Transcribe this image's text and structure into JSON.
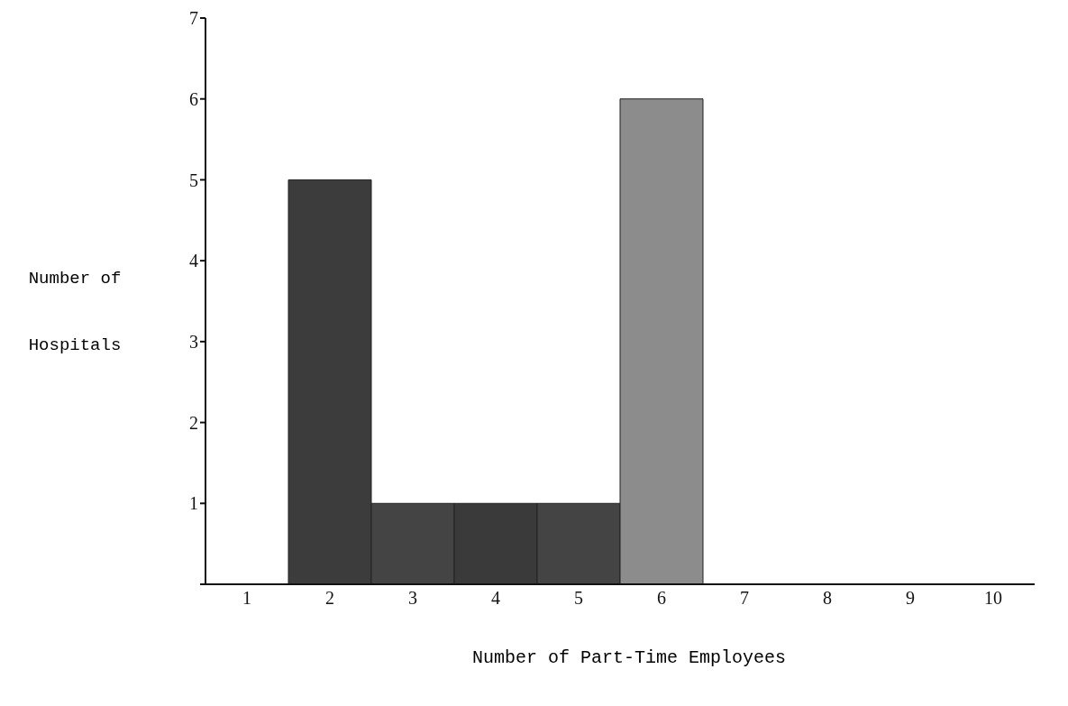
{
  "chart_data": {
    "type": "bar",
    "xlabel": "Number of Part-Time Employees",
    "ylabel": "Number of Hospitals",
    "categories": [
      "1",
      "2",
      "3",
      "4",
      "5",
      "6",
      "7",
      "8",
      "9",
      "10"
    ],
    "values": [
      0,
      5,
      1,
      1,
      1,
      6,
      0,
      0,
      0,
      0
    ],
    "colors": [
      "#3c3c3c",
      "#3c3c3c",
      "#444444",
      "#3a3a3a",
      "#444444",
      "#8c8c8c",
      "#3c3c3c",
      "#3c3c3c",
      "#3c3c3c",
      "#3c3c3c"
    ],
    "ylim": [
      0,
      7
    ],
    "yticks": [
      {
        "value": 0,
        "label": null
      },
      1,
      2,
      3,
      4,
      5,
      6,
      7
    ],
    "grid": false,
    "legend": false
  }
}
